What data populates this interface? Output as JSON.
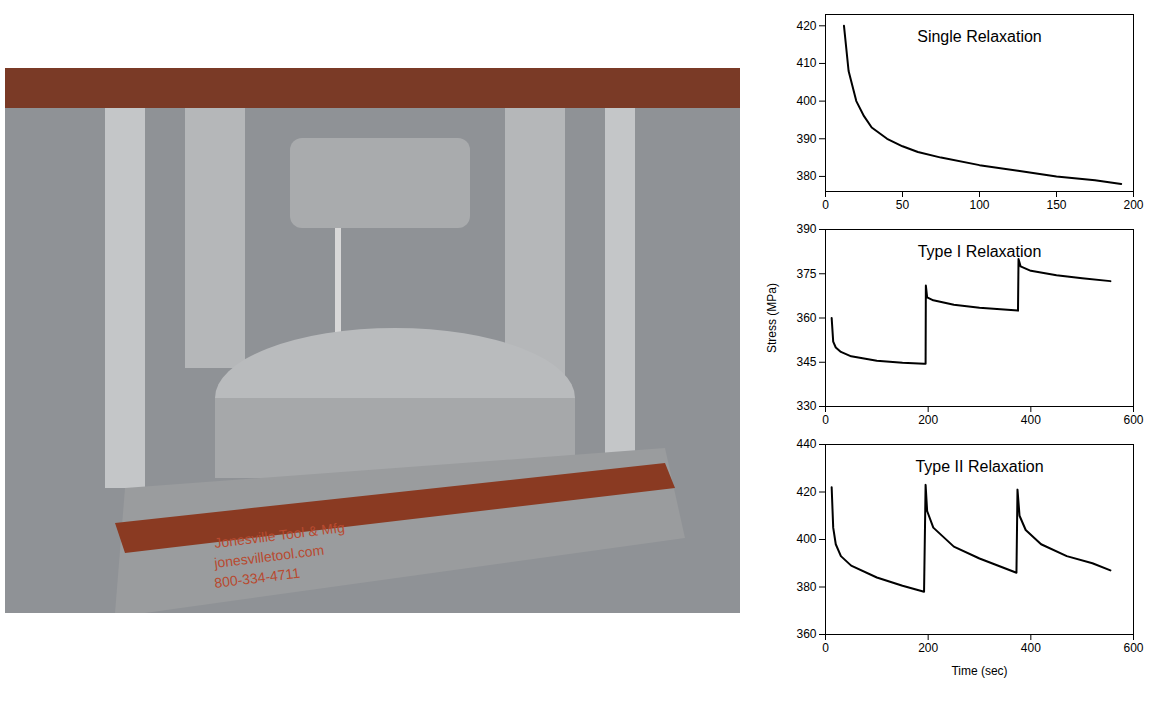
{
  "photo": {
    "texts": [
      "Jonesville Tool & Mfg",
      "jonesvilletool.com",
      "800-334-4711"
    ]
  },
  "chart_data": [
    {
      "type": "line",
      "title": "Single Relaxation",
      "color": "#000000",
      "x": [
        12,
        15,
        20,
        25,
        30,
        40,
        50,
        60,
        75,
        100,
        125,
        150,
        175,
        192
      ],
      "values": [
        420,
        408,
        400,
        396,
        393,
        390,
        388,
        386.5,
        385,
        383,
        381.5,
        380,
        379,
        378
      ],
      "xlim": [
        0,
        200
      ],
      "xticks": [
        0,
        50,
        100,
        150,
        200
      ],
      "ylim": [
        376,
        423
      ],
      "yticks": [
        380,
        390,
        400,
        410,
        420
      ]
    },
    {
      "type": "line",
      "title": "Type I Relaxation",
      "color": "#000000",
      "y_label": "Stress (MPa)",
      "x": [
        12,
        15,
        20,
        30,
        50,
        100,
        150,
        192,
        195,
        195.5,
        198,
        210,
        250,
        300,
        375,
        376,
        380,
        400,
        450,
        500,
        555
      ],
      "values": [
        360,
        352,
        350,
        348.5,
        347,
        345.5,
        344.8,
        344.5,
        344.5,
        371,
        367,
        366,
        364.5,
        363.5,
        362.5,
        380,
        377.5,
        376,
        374.5,
        373.5,
        372.5
      ],
      "xlim": [
        0,
        600
      ],
      "xticks": [
        0,
        200,
        400,
        600
      ],
      "ylim": [
        330,
        390
      ],
      "yticks": [
        330,
        345,
        360,
        375,
        390
      ]
    },
    {
      "type": "line",
      "title": "Type II Relaxation",
      "color": "#000000",
      "x_label": "Time (sec)",
      "x": [
        12,
        15,
        20,
        30,
        50,
        100,
        150,
        192,
        195,
        198,
        210,
        250,
        300,
        372,
        374,
        378,
        390,
        420,
        470,
        520,
        555
      ],
      "values": [
        422,
        405,
        398,
        393,
        389,
        384,
        380.5,
        378,
        423,
        412,
        405,
        397,
        392,
        386,
        421,
        410,
        404,
        398,
        393,
        390,
        387
      ],
      "xlim": [
        0,
        600
      ],
      "xticks": [
        0,
        200,
        400,
        600
      ],
      "ylim": [
        360,
        440
      ],
      "yticks": [
        360,
        380,
        400,
        420,
        440
      ]
    }
  ]
}
